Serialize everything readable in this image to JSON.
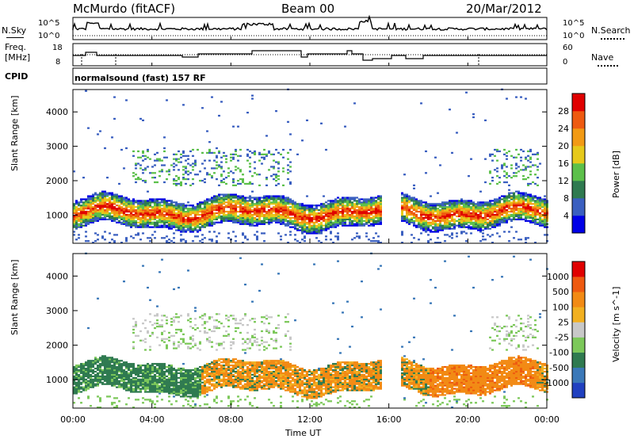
{
  "header": {
    "station": "McMurdo (fitACF)",
    "beam": "Beam 00",
    "date": "20/Mar/2012"
  },
  "noise_panel": {
    "left_label": "N.Sky",
    "right_label": "N.Search",
    "left_ticks": [
      "10^5",
      "10^0"
    ],
    "right_ticks": [
      "10^5",
      "10^0"
    ]
  },
  "freq_panel": {
    "left_label_line1": "Freq.",
    "left_label_line2": "[MHz]",
    "right_label": "Nave",
    "left_ticks": [
      "18",
      "8"
    ],
    "right_ticks": [
      "60",
      "0"
    ]
  },
  "cpid": {
    "label": "CPID",
    "text": "normalsound (fast) 157 RF"
  },
  "chart_data": [
    {
      "type": "heatmap",
      "name": "Power",
      "ylabel": "Slant Range [km]",
      "yticks": [
        1000,
        2000,
        3000,
        4000
      ],
      "ylim": [
        180,
        4650
      ],
      "x_range_hours": [
        0,
        24
      ],
      "colorbar": {
        "label": "Power [dB]",
        "ticks": [
          "28",
          "24",
          "20",
          "16",
          "12",
          "8",
          "4"
        ],
        "colors": [
          "#0000e6",
          "#3a5fc0",
          "#2f7a50",
          "#5cc04a",
          "#e6c91a",
          "#f29a14",
          "#ee5a10",
          "#e00000"
        ]
      }
    },
    {
      "type": "heatmap",
      "name": "Velocity",
      "ylabel": "Slant Range [km]",
      "yticks": [
        1000,
        2000,
        3000,
        4000
      ],
      "ylim": [
        180,
        4650
      ],
      "x_range_hours": [
        0,
        24
      ],
      "colorbar": {
        "label": "Velocity [m s^-1]",
        "ticks": [
          "1000",
          "500",
          "100",
          "25",
          "-25",
          "-100",
          "-500",
          "-1000"
        ],
        "colors": [
          "#2040c0",
          "#3a78b8",
          "#2f7a50",
          "#7cc85a",
          "#c8c8c8",
          "#f2b020",
          "#f28a14",
          "#ee5a10",
          "#e00000"
        ]
      }
    }
  ],
  "x_axis": {
    "label": "Time UT",
    "ticks": [
      "00:00",
      "04:00",
      "08:00",
      "12:00",
      "16:00",
      "20:00",
      "00:00"
    ]
  }
}
